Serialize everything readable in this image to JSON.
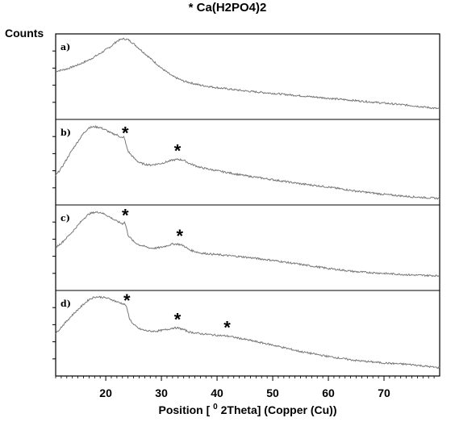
{
  "chart_data": {
    "type": "line",
    "title": "* Ca(H2PO4)2",
    "ylabel": "Counts",
    "xlabel": "Position [ 0 2Theta] (Copper (Cu))",
    "xlabel_parts": {
      "before": "Position [ ",
      "superscript": "0",
      "after": " 2Theta] (Copper (Cu))"
    },
    "xlim": [
      11,
      80
    ],
    "xticks": [
      20,
      30,
      40,
      50,
      60,
      70
    ],
    "xtick_labels": [
      "20",
      "30",
      "40",
      "50",
      "60",
      "70"
    ],
    "line_color": "#777777",
    "marker_symbol": "*",
    "panels": [
      {
        "label": "a)",
        "ylim": [
          0,
          105
        ],
        "x": [
          11,
          13,
          15,
          17,
          19,
          21,
          22,
          23,
          24,
          25,
          26,
          28,
          30,
          32,
          34,
          37,
          40,
          45,
          50,
          55,
          60,
          65,
          70,
          75,
          80
        ],
        "y": [
          59,
          62,
          67,
          73,
          81,
          90,
          96,
          99,
          98,
          93,
          87,
          75,
          63,
          53,
          47,
          42,
          39,
          35,
          32,
          29,
          26,
          23,
          20,
          17,
          13
        ],
        "peaks": []
      },
      {
        "label": "b)",
        "ylim": [
          0,
          105
        ],
        "x": [
          11,
          12,
          14,
          16,
          17,
          18,
          19,
          20,
          21,
          22,
          23,
          23.3,
          23.6,
          24,
          25,
          26,
          27,
          28,
          29,
          30,
          31,
          32,
          33,
          34,
          35,
          37,
          40,
          45,
          50,
          55,
          60,
          65,
          70,
          75,
          80
        ],
        "y": [
          36,
          45,
          68,
          88,
          95,
          96,
          95,
          92,
          88,
          86,
          82,
          84,
          75,
          66,
          58,
          52,
          50,
          49,
          50,
          51,
          53,
          55,
          56,
          55,
          51,
          46,
          42,
          36,
          31,
          26,
          22,
          17,
          13,
          10,
          8
        ],
        "peaks": [
          23.5,
          32.9
        ]
      },
      {
        "label": "c)",
        "ylim": [
          0,
          105
        ],
        "x": [
          11,
          12,
          14,
          16,
          17,
          18,
          19,
          20,
          21,
          22,
          23,
          23.4,
          23.7,
          24,
          25,
          26,
          27,
          28,
          29,
          30,
          31,
          32,
          33,
          34,
          35,
          37,
          40,
          45,
          50,
          55,
          60,
          65,
          70,
          75,
          80
        ],
        "y": [
          53,
          58,
          72,
          88,
          94,
          96,
          96,
          93,
          89,
          85,
          82,
          84,
          77,
          68,
          60,
          56,
          54,
          52,
          52,
          53,
          55,
          57,
          57,
          55,
          50,
          46,
          44,
          41,
          37,
          32,
          27,
          23,
          21,
          19,
          18
        ],
        "peaks": [
          23.5,
          33.3
        ]
      },
      {
        "label": "d)",
        "ylim": [
          0,
          105
        ],
        "x": [
          11,
          12,
          14,
          16,
          17,
          18,
          19,
          20,
          21,
          22,
          23,
          23.6,
          23.9,
          24.3,
          25,
          26,
          27,
          28,
          29,
          30,
          31,
          32,
          33,
          34,
          35,
          37,
          40,
          42,
          45,
          50,
          55,
          60,
          65,
          70,
          75,
          80
        ],
        "y": [
          52,
          60,
          75,
          88,
          94,
          97,
          97,
          96,
          94,
          91,
          89,
          87,
          80,
          70,
          63,
          58,
          56,
          55,
          55,
          56,
          57,
          59,
          59,
          57,
          54,
          52,
          50,
          49,
          45,
          38,
          30,
          24,
          19,
          16,
          14,
          10
        ],
        "peaks": [
          23.8,
          32.9,
          41.8
        ]
      }
    ]
  }
}
